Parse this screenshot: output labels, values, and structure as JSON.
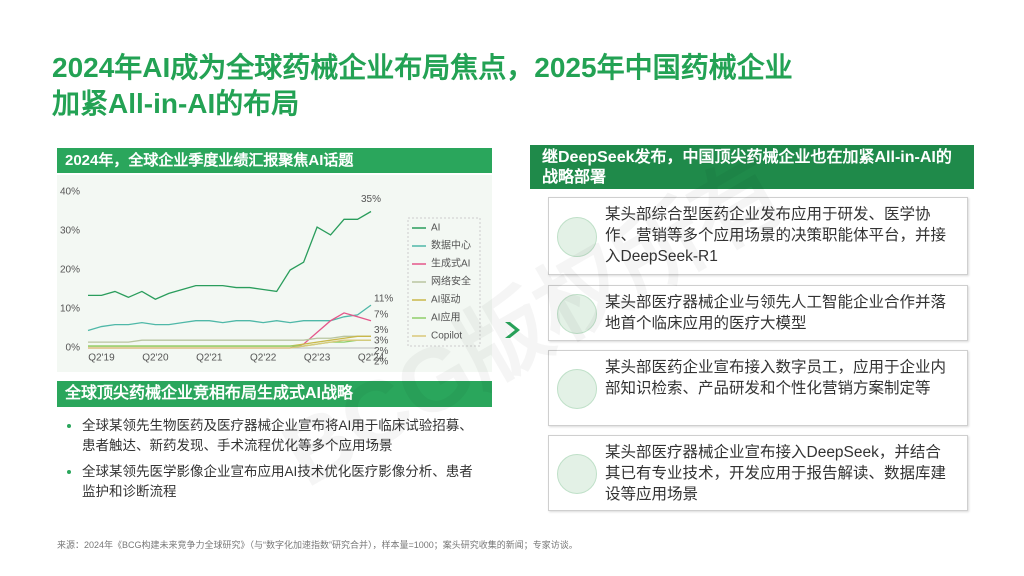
{
  "title_lines": [
    "2024年AI成为全球药械企业布局焦点，2025年中国药械企业",
    "加紧All-in-AI的布局"
  ],
  "chart_data": {
    "type": "line",
    "title": "2024年，全球企业季度业绩汇报聚焦AI话题",
    "categories": [
      null,
      "Q2'19",
      null,
      null,
      null,
      "Q2'20",
      null,
      null,
      null,
      "Q2'21",
      null,
      null,
      null,
      "Q2'22",
      null,
      null,
      null,
      "Q2'23",
      null,
      null,
      null,
      "Q2'24"
    ],
    "ylim": [
      0,
      40
    ],
    "yticks": [
      {
        "value": 0,
        "label": "0%"
      },
      {
        "value": 10,
        "label": "10%"
      },
      {
        "value": 20,
        "label": "20%"
      },
      {
        "value": 30,
        "label": "30%"
      },
      {
        "value": 40,
        "label": "40%"
      }
    ],
    "grid": false,
    "legend": "right",
    "series": [
      {
        "name": "AI",
        "color": "#2a9d5c",
        "values": [
          13.5,
          13.5,
          14.5,
          13,
          14.5,
          12.5,
          14,
          15,
          16,
          16,
          16,
          15.5,
          15.5,
          15,
          14.5,
          20,
          22,
          31,
          29,
          33,
          33,
          35
        ],
        "value_labels": [
          null,
          null,
          null,
          null,
          null,
          null,
          null,
          null,
          null,
          null,
          null,
          null,
          null,
          null,
          null,
          null,
          null,
          null,
          null,
          null,
          null,
          "35%"
        ]
      },
      {
        "name": "数据中心",
        "color": "#4fb8a8",
        "values": [
          4.5,
          5.5,
          6,
          6,
          6.5,
          6,
          6,
          6.5,
          7,
          7,
          6.5,
          7,
          7,
          6.5,
          7,
          6.5,
          7,
          7,
          7,
          8,
          8.5,
          11
        ],
        "value_labels": [
          null,
          null,
          null,
          null,
          null,
          null,
          null,
          null,
          null,
          null,
          null,
          null,
          null,
          null,
          null,
          null,
          null,
          null,
          null,
          null,
          null,
          "11%"
        ]
      },
      {
        "name": "生成式AI",
        "color": "#e5578a",
        "values": [
          0,
          0,
          0,
          0,
          0,
          0,
          0,
          0,
          0,
          0,
          0,
          0,
          0,
          0,
          0,
          0,
          1,
          4,
          7,
          9,
          8,
          7
        ],
        "value_labels": [
          null,
          null,
          null,
          null,
          null,
          null,
          null,
          null,
          null,
          null,
          null,
          null,
          null,
          null,
          null,
          null,
          null,
          null,
          null,
          null,
          null,
          "7%"
        ]
      },
      {
        "name": "网络安全",
        "color": "#b9c5a0",
        "values": [
          1.5,
          1.5,
          1.5,
          1.5,
          2,
          2,
          2,
          2,
          2,
          2,
          2,
          2,
          2,
          2,
          2,
          2,
          2,
          2.5,
          2.5,
          3,
          3,
          3
        ],
        "value_labels": [
          null,
          null,
          null,
          null,
          null,
          null,
          null,
          null,
          null,
          null,
          null,
          null,
          null,
          null,
          null,
          null,
          null,
          null,
          null,
          null,
          null,
          "3%"
        ]
      },
      {
        "name": "AI驱动",
        "color": "#c9b84a",
        "values": [
          0.5,
          0.5,
          0.5,
          0.5,
          0.5,
          0.5,
          0.5,
          0.5,
          0.5,
          0.5,
          0.5,
          0.5,
          0.5,
          0.5,
          0.5,
          0.5,
          1,
          1.5,
          2,
          2.5,
          3,
          3
        ],
        "value_labels": [
          null,
          null,
          null,
          null,
          null,
          null,
          null,
          null,
          null,
          null,
          null,
          null,
          null,
          null,
          null,
          null,
          null,
          null,
          null,
          null,
          null,
          "3%"
        ]
      },
      {
        "name": "AI应用",
        "color": "#8fcf6a",
        "values": [
          0.5,
          0.5,
          0.5,
          0.5,
          0.5,
          0.5,
          0.5,
          0.5,
          0.5,
          0.5,
          0.5,
          0.5,
          0.5,
          0.5,
          0.5,
          0.5,
          0.5,
          1,
          1.5,
          1.5,
          2,
          2
        ],
        "value_labels": [
          null,
          null,
          null,
          null,
          null,
          null,
          null,
          null,
          null,
          null,
          null,
          null,
          null,
          null,
          null,
          null,
          null,
          null,
          null,
          null,
          null,
          "2%"
        ]
      },
      {
        "name": "Copilot",
        "color": "#d9c97a",
        "values": [
          0,
          0,
          0,
          0,
          0,
          0,
          0,
          0,
          0,
          0,
          0,
          0,
          0,
          0,
          0,
          0,
          0.5,
          1,
          1.5,
          2,
          2,
          2
        ],
        "value_labels": [
          null,
          null,
          null,
          null,
          null,
          null,
          null,
          null,
          null,
          null,
          null,
          null,
          null,
          null,
          null,
          null,
          null,
          null,
          null,
          null,
          null,
          "2%"
        ]
      }
    ]
  },
  "strategy": {
    "title": "全球顶尖药械企业竞相布局生成式AI战略",
    "bullets": [
      "全球某领先生物医药及医疗器械企业宣布将AI用于临床试验招募、患者触达、新药发现、手术流程优化等多个应用场景",
      "全球某领先医学影像企业宣布应用AI技术优化医疗影像分析、患者监护和诊断流程"
    ]
  },
  "china": {
    "title": "继DeepSeek发布，中国顶尖药械企业也在加紧All-in-AI的战略部署",
    "cards": [
      "某头部综合型医药企业发布应用于研发、医学协作、营销等多个应用场景的决策职能体平台，并接入DeepSeek-R1",
      "某头部医疗器械企业与领先人工智能企业合作并落地首个临床应用的医疗大模型",
      "某头部医药企业宣布接入数字员工，应用于企业内部知识检索、产品研发和个性化营销方案制定等",
      "某头部医疗器械企业宣布接入DeepSeek，并结合其已有专业技术，开发应用于报告解读、数据库建设等应用场景"
    ]
  },
  "watermark": "BCG版权所有",
  "source": "来源：2024年《BCG构建未来竞争力全球研究》（与“数字化加速指数”研究合并），样本量=1000；案头研究收集的新闻；专家访谈。"
}
